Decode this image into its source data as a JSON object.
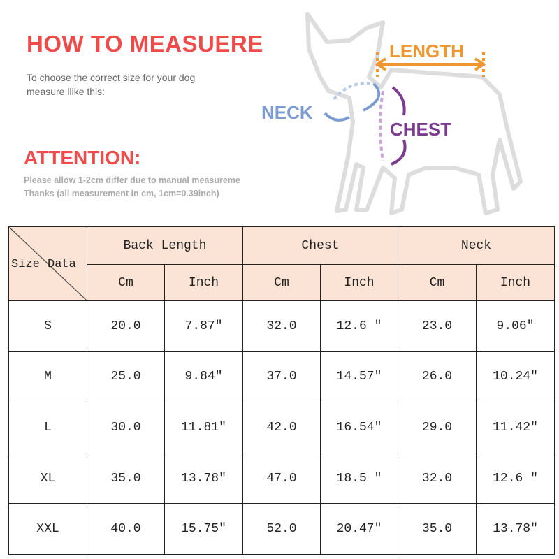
{
  "header": {
    "title": "HOW TO MEASUERE",
    "subtitle": [
      "To choose the correct size for your dog",
      "measure llike this:"
    ]
  },
  "attention": {
    "title": "ATTENTION:",
    "notes": [
      "Please allow 1-2cm differ due to manual measureme",
      "Thanks (all measurement in cm, 1cm=0.39inch)"
    ]
  },
  "diagram": {
    "length": "LENGTH",
    "neck": "NECK",
    "chest": "CHEST"
  },
  "table": {
    "corner": [
      "Size",
      "Data"
    ],
    "groups": [
      "Back Length",
      "Chest",
      "Neck"
    ],
    "units": [
      "Cm",
      "Inch",
      "Cm",
      "Inch",
      "Cm",
      "Inch"
    ],
    "rows": [
      [
        "S",
        "20.0",
        "7.87″",
        "32.0",
        "12.6 ″",
        "23.0",
        "9.06″"
      ],
      [
        "M",
        "25.0",
        "9.84″",
        "37.0",
        "14.57″",
        "26.0",
        "10.24″"
      ],
      [
        "L",
        "30.0",
        "11.81″",
        "42.0",
        "16.54″",
        "29.0",
        "11.42″"
      ],
      [
        "XL",
        "35.0",
        "13.78″",
        "47.0",
        "18.5 ″",
        "32.0",
        "12.6 ″"
      ],
      [
        "XXL",
        "40.0",
        "15.75″",
        "52.0",
        "20.47″",
        "35.0",
        "13.78″"
      ]
    ]
  }
}
